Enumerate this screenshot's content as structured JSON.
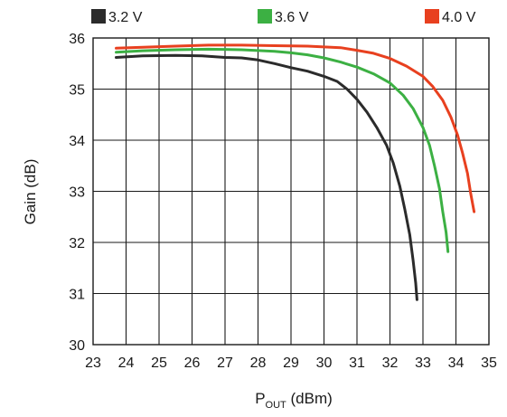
{
  "chart_data": {
    "type": "line",
    "title": "",
    "xlabel": {
      "main": "P",
      "sub": "OUT",
      "unit": " (dBm)"
    },
    "ylabel": "Gain (dB)",
    "xlim": [
      23,
      35
    ],
    "ylim": [
      30,
      36
    ],
    "xticks": [
      23,
      24,
      25,
      26,
      27,
      28,
      29,
      30,
      31,
      32,
      33,
      34,
      35
    ],
    "yticks": [
      30,
      31,
      32,
      33,
      34,
      35,
      36
    ],
    "grid": true,
    "legend_position": "top",
    "series": [
      {
        "name": "3.2 V",
        "color": "#2b2b2b",
        "points": [
          [
            23.7,
            35.62
          ],
          [
            24.5,
            35.65
          ],
          [
            25.5,
            35.66
          ],
          [
            26.3,
            35.65
          ],
          [
            27.0,
            35.62
          ],
          [
            27.5,
            35.61
          ],
          [
            28.0,
            35.57
          ],
          [
            28.5,
            35.5
          ],
          [
            29.0,
            35.42
          ],
          [
            29.5,
            35.35
          ],
          [
            30.0,
            35.25
          ],
          [
            30.4,
            35.15
          ],
          [
            30.7,
            35.0
          ],
          [
            31.0,
            34.8
          ],
          [
            31.3,
            34.55
          ],
          [
            31.6,
            34.25
          ],
          [
            31.9,
            33.9
          ],
          [
            32.1,
            33.55
          ],
          [
            32.3,
            33.1
          ],
          [
            32.45,
            32.65
          ],
          [
            32.6,
            32.15
          ],
          [
            32.7,
            31.65
          ],
          [
            32.78,
            31.2
          ],
          [
            32.82,
            30.88
          ]
        ]
      },
      {
        "name": "3.6 V",
        "color": "#3cb043",
        "points": [
          [
            23.7,
            35.72
          ],
          [
            24.5,
            35.75
          ],
          [
            25.5,
            35.77
          ],
          [
            26.5,
            35.78
          ],
          [
            27.5,
            35.77
          ],
          [
            28.5,
            35.74
          ],
          [
            29.0,
            35.71
          ],
          [
            29.5,
            35.67
          ],
          [
            30.0,
            35.61
          ],
          [
            30.5,
            35.53
          ],
          [
            31.0,
            35.43
          ],
          [
            31.5,
            35.3
          ],
          [
            32.0,
            35.12
          ],
          [
            32.4,
            34.88
          ],
          [
            32.7,
            34.62
          ],
          [
            33.0,
            34.25
          ],
          [
            33.2,
            33.9
          ],
          [
            33.35,
            33.5
          ],
          [
            33.5,
            33.05
          ],
          [
            33.6,
            32.6
          ],
          [
            33.7,
            32.2
          ],
          [
            33.76,
            31.82
          ]
        ]
      },
      {
        "name": "4.0 V",
        "color": "#e8401f",
        "points": [
          [
            23.7,
            35.8
          ],
          [
            24.5,
            35.82
          ],
          [
            25.5,
            35.84
          ],
          [
            26.5,
            35.86
          ],
          [
            27.5,
            35.86
          ],
          [
            28.5,
            35.85
          ],
          [
            29.5,
            35.84
          ],
          [
            30.5,
            35.81
          ],
          [
            31.0,
            35.76
          ],
          [
            31.5,
            35.7
          ],
          [
            32.0,
            35.6
          ],
          [
            32.5,
            35.45
          ],
          [
            33.0,
            35.25
          ],
          [
            33.3,
            35.05
          ],
          [
            33.6,
            34.78
          ],
          [
            33.85,
            34.45
          ],
          [
            34.05,
            34.1
          ],
          [
            34.2,
            33.75
          ],
          [
            34.35,
            33.35
          ],
          [
            34.45,
            32.95
          ],
          [
            34.55,
            32.6
          ]
        ]
      }
    ]
  }
}
